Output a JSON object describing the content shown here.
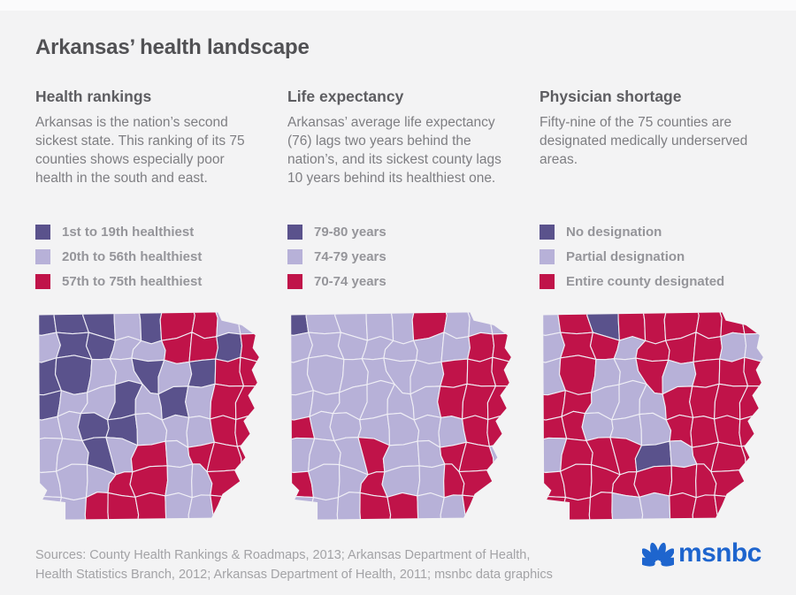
{
  "page": {
    "title": "Arkansas’ health landscape"
  },
  "colors": {
    "background": "#f3f3f4",
    "dark_purple": "#5a528c",
    "light_purple": "#b7b1d8",
    "crimson": "#c01349",
    "map_stroke": "#efeef5",
    "logo_blue": "#1e65ce"
  },
  "panels": [
    {
      "heading": "Health rankings",
      "description": "Arkansas is the nation’s second sickest state. This ranking of its 75 counties shows especially poor health in the south and east.",
      "legend": [
        {
          "key": "dark_purple",
          "label": "1st to 19th healthiest"
        },
        {
          "key": "light_purple",
          "label": "20th to 56th healthiest"
        },
        {
          "key": "crimson",
          "label": "57th to 75th healthiest"
        }
      ]
    },
    {
      "heading": "Life expectancy",
      "description": "Arkansas’ average life expectancy (76) lags two years behind the nation’s, and its sickest county lags 10 years behind its healthiest one.",
      "legend": [
        {
          "key": "dark_purple",
          "label": "79-80 years"
        },
        {
          "key": "light_purple",
          "label": "74-79 years"
        },
        {
          "key": "crimson",
          "label": "70-74 years"
        }
      ]
    },
    {
      "heading": "Physician shortage",
      "description": "Fifty-nine of the 75 counties are designated medically underserved areas.",
      "legend": [
        {
          "key": "dark_purple",
          "label": "No designation"
        },
        {
          "key": "light_purple",
          "label": "Partial designation"
        },
        {
          "key": "crimson",
          "label": "Entire county designated"
        }
      ]
    }
  ],
  "chart_data": [
    {
      "type": "heatmap",
      "subtype": "choropleth_map",
      "region": "Arkansas counties (75)",
      "title": "Health rankings",
      "categories": [
        "1st to 19th healthiest",
        "20th to 56th healthiest",
        "57th to 75th healthiest"
      ],
      "legend_position": "above map",
      "category_colors": {
        "D": "#5a528c",
        "L": "#b7b1d8",
        "R": "#c01349"
      },
      "grid_rows_approx": [
        "DDDLDRRLL",
        "LDDLLRRDR",
        "DDLLDLDRR",
        "DLLDLDLRR",
        "LLDDLLLRR",
        "LLDLRLRRR",
        "LLLRRLLRR",
        "LLRRRLLRR"
      ]
    },
    {
      "type": "heatmap",
      "subtype": "choropleth_map",
      "region": "Arkansas counties (75)",
      "title": "Life expectancy",
      "categories": [
        "79-80 years",
        "74-79 years",
        "70-74 years"
      ],
      "legend_position": "above map",
      "category_colors": {
        "D": "#5a528c",
        "L": "#b7b1d8",
        "R": "#c01349"
      },
      "grid_rows_approx": [
        "DLLLLRLLL",
        "LLLLLLLRR",
        "LLLLLLRRR",
        "LLLLLLRRR",
        "RLLLLLLRR",
        "LLLRLLRRL",
        "RLLRLLRRL",
        "LLLRRLLRL"
      ]
    },
    {
      "type": "heatmap",
      "subtype": "choropleth_map",
      "region": "Arkansas counties (75)",
      "title": "Physician shortage",
      "categories": [
        "No designation",
        "Partial designation",
        "Entire county designated"
      ],
      "legend_position": "above map",
      "category_colors": {
        "D": "#5a528c",
        "L": "#b7b1d8",
        "R": "#c01349"
      },
      "grid_rows_approx": [
        "LRDRRRRRR",
        "LRRLRRRLL",
        "LRLLRLRRR",
        "RRLLLRRRR",
        "RRLLLRRRR",
        "LRRRDLRRR",
        "RRRRRRRRR",
        "RRRLLRRRR"
      ]
    }
  ],
  "footer": {
    "sources_line1": "Sources: County Health Rankings & Roadmaps, 2013; Arkansas Department of Health,",
    "sources_line2": "Health Statistics Branch, 2012; Arkansas Department of Health, 2011; msnbc data graphics",
    "logo_text": "msnbc"
  }
}
